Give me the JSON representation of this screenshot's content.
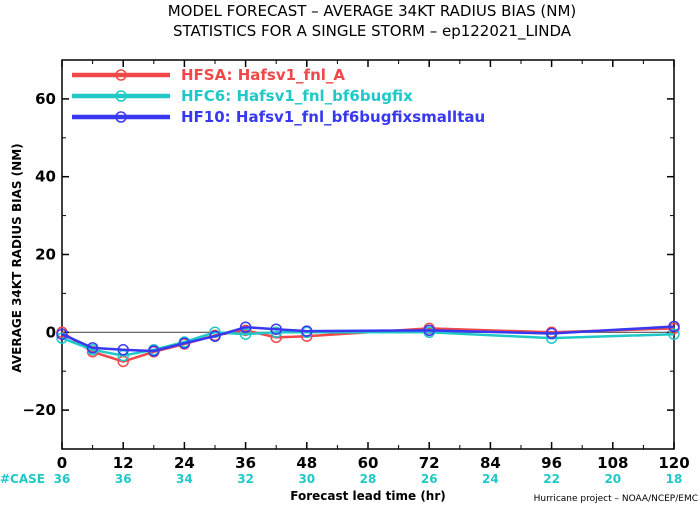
{
  "title_line1": "MODEL FORECAST – AVERAGE 34KT RADIUS BIAS (NM)",
  "title_line2": "STATISTICS FOR A SINGLE STORM – ep122021_LINDA",
  "credit": "Hurricane project – NOAA/NCEP/EMC",
  "case_label": "#CASE",
  "case_color": "#20c8c8",
  "zero_line_color": "#555555",
  "chart_data": {
    "type": "line",
    "xlabel": "Forecast lead time (hr)",
    "ylabel": "AVERAGE 34KT RADIUS BIAS (NM)",
    "xlim": [
      0,
      120
    ],
    "ylim": [
      -30,
      70
    ],
    "x_ticks": [
      0,
      12,
      24,
      36,
      48,
      60,
      72,
      84,
      96,
      108,
      120
    ],
    "y_ticks": [
      -20,
      0,
      20,
      40,
      60
    ],
    "x_tick_labels": [
      "0",
      "12",
      "24",
      "36",
      "48",
      "60",
      "72",
      "84",
      "96",
      "108",
      "120"
    ],
    "y_tick_labels": [
      "−20",
      "0",
      "20",
      "40",
      "60"
    ],
    "case_counts": [
      {
        "x": 0,
        "label": "36"
      },
      {
        "x": 12,
        "label": "36"
      },
      {
        "x": 24,
        "label": "34"
      },
      {
        "x": 36,
        "label": "32"
      },
      {
        "x": 48,
        "label": "30"
      },
      {
        "x": 60,
        "label": "28"
      },
      {
        "x": 72,
        "label": "26"
      },
      {
        "x": 84,
        "label": "24"
      },
      {
        "x": 96,
        "label": "22"
      },
      {
        "x": 108,
        "label": "20"
      },
      {
        "x": 120,
        "label": "18"
      }
    ],
    "grid": false,
    "legend_position": "top-left",
    "series": [
      {
        "name": "HFSA:  Hafsv1_fnl_A",
        "color": "#f04848",
        "points": [
          {
            "x": 0,
            "y": 0.0
          },
          {
            "x": 6,
            "y": -5.0
          },
          {
            "x": 12,
            "y": -7.5
          },
          {
            "x": 18,
            "y": -5.0
          },
          {
            "x": 24,
            "y": -3.0
          },
          {
            "x": 30,
            "y": -0.8
          },
          {
            "x": 36,
            "y": 0.5
          },
          {
            "x": 42,
            "y": -1.3
          },
          {
            "x": 48,
            "y": -1.0
          },
          {
            "x": 72,
            "y": 1.0
          },
          {
            "x": 96,
            "y": 0.0
          },
          {
            "x": 120,
            "y": 1.0
          }
        ]
      },
      {
        "name": "HFC6:  Hafsv1_fnl_bf6bugfix",
        "color": "#20c8c8",
        "points": [
          {
            "x": 0,
            "y": -1.5
          },
          {
            "x": 6,
            "y": -4.5
          },
          {
            "x": 12,
            "y": -6.0
          },
          {
            "x": 18,
            "y": -4.5
          },
          {
            "x": 24,
            "y": -2.5
          },
          {
            "x": 30,
            "y": 0.0
          },
          {
            "x": 36,
            "y": -0.5
          },
          {
            "x": 42,
            "y": 0.0
          },
          {
            "x": 48,
            "y": 0.0
          },
          {
            "x": 72,
            "y": 0.0
          },
          {
            "x": 96,
            "y": -1.5
          },
          {
            "x": 120,
            "y": -0.5
          }
        ]
      },
      {
        "name": "HF10:  Hafsv1_fnl_bf6bugfixsmalltau",
        "color": "#3838f0",
        "points": [
          {
            "x": 0,
            "y": -0.5
          },
          {
            "x": 6,
            "y": -4.0
          },
          {
            "x": 12,
            "y": -4.5
          },
          {
            "x": 18,
            "y": -4.8
          },
          {
            "x": 24,
            "y": -2.8
          },
          {
            "x": 30,
            "y": -1.0
          },
          {
            "x": 36,
            "y": 1.3
          },
          {
            "x": 42,
            "y": 0.8
          },
          {
            "x": 48,
            "y": 0.3
          },
          {
            "x": 72,
            "y": 0.5
          },
          {
            "x": 96,
            "y": -0.3
          },
          {
            "x": 120,
            "y": 1.5
          }
        ]
      }
    ]
  }
}
